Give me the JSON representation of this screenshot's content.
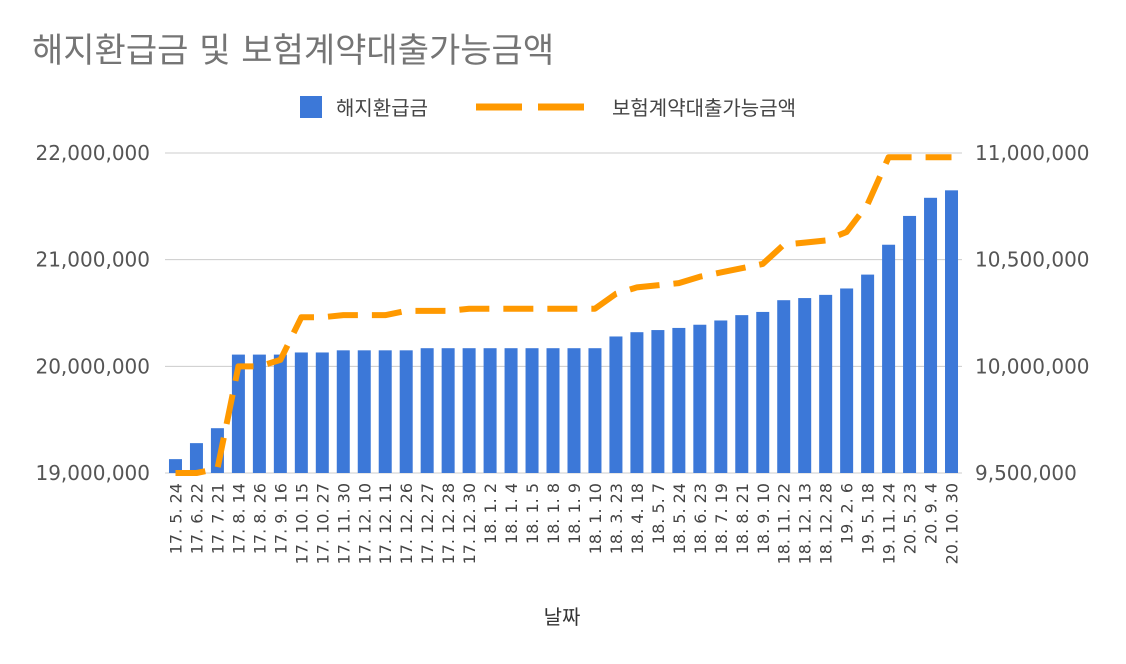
{
  "chart_data": {
    "type": "bar+line",
    "title": "해지환급금 및 보험계약대출가능금액",
    "xlabel": "날짜",
    "categories": [
      "17. 5. 24",
      "17. 6. 22",
      "17. 7. 21",
      "17. 8. 14",
      "17. 8. 26",
      "17. 9. 16",
      "17. 10. 15",
      "17. 10. 27",
      "17. 11. 30",
      "17. 12. 10",
      "17. 12. 11",
      "17. 12. 26",
      "17. 12. 27",
      "17. 12. 28",
      "17. 12. 30",
      "18. 1. 2",
      "18. 1. 4",
      "18. 1. 5",
      "18. 1. 8",
      "18. 1. 9",
      "18. 1. 10",
      "18. 3. 23",
      "18. 4. 18",
      "18. 5. 7",
      "18. 5. 24",
      "18. 6. 23",
      "18. 7. 19",
      "18. 8. 21",
      "18. 9. 10",
      "18. 11. 22",
      "18. 12. 13",
      "18. 12. 28",
      "19. 2. 6",
      "19. 5. 18",
      "19. 11. 24",
      "20. 5. 23",
      "20. 9. 4",
      "20. 10. 30"
    ],
    "series": [
      {
        "name": "해지환급금",
        "type": "bar",
        "axis": "left",
        "color": "#3c78d8",
        "values": [
          19130000,
          19280000,
          19420000,
          20110000,
          20110000,
          20110000,
          20130000,
          20130000,
          20150000,
          20150000,
          20150000,
          20150000,
          20170000,
          20170000,
          20170000,
          20170000,
          20170000,
          20170000,
          20170000,
          20170000,
          20170000,
          20280000,
          20320000,
          20340000,
          20360000,
          20390000,
          20430000,
          20480000,
          20510000,
          20620000,
          20640000,
          20670000,
          20730000,
          20860000,
          21140000,
          21410000,
          21580000,
          21650000
        ]
      },
      {
        "name": "보험계약대출가능금액",
        "type": "line",
        "axis": "right",
        "color": "#ff9900",
        "values": [
          9500000,
          9500000,
          9520000,
          10000000,
          10000000,
          10030000,
          10230000,
          10230000,
          10240000,
          10240000,
          10240000,
          10260000,
          10260000,
          10260000,
          10270000,
          10270000,
          10270000,
          10270000,
          10270000,
          10270000,
          10270000,
          10340000,
          10370000,
          10380000,
          10390000,
          10420000,
          10440000,
          10460000,
          10480000,
          10570000,
          10580000,
          10590000,
          10630000,
          10760000,
          10980000,
          10980000,
          10980000,
          10980000
        ]
      }
    ],
    "ylim_left": [
      19000000,
      22000000
    ],
    "ylim_right": [
      9500000,
      11000000
    ],
    "yticks_left": [
      "19,000,000",
      "20,000,000",
      "21,000,000",
      "22,000,000"
    ],
    "yticks_right": [
      "9,500,000",
      "10,000,000",
      "10,500,000",
      "11,000,000"
    ],
    "grid": true,
    "legend": "top-center"
  }
}
